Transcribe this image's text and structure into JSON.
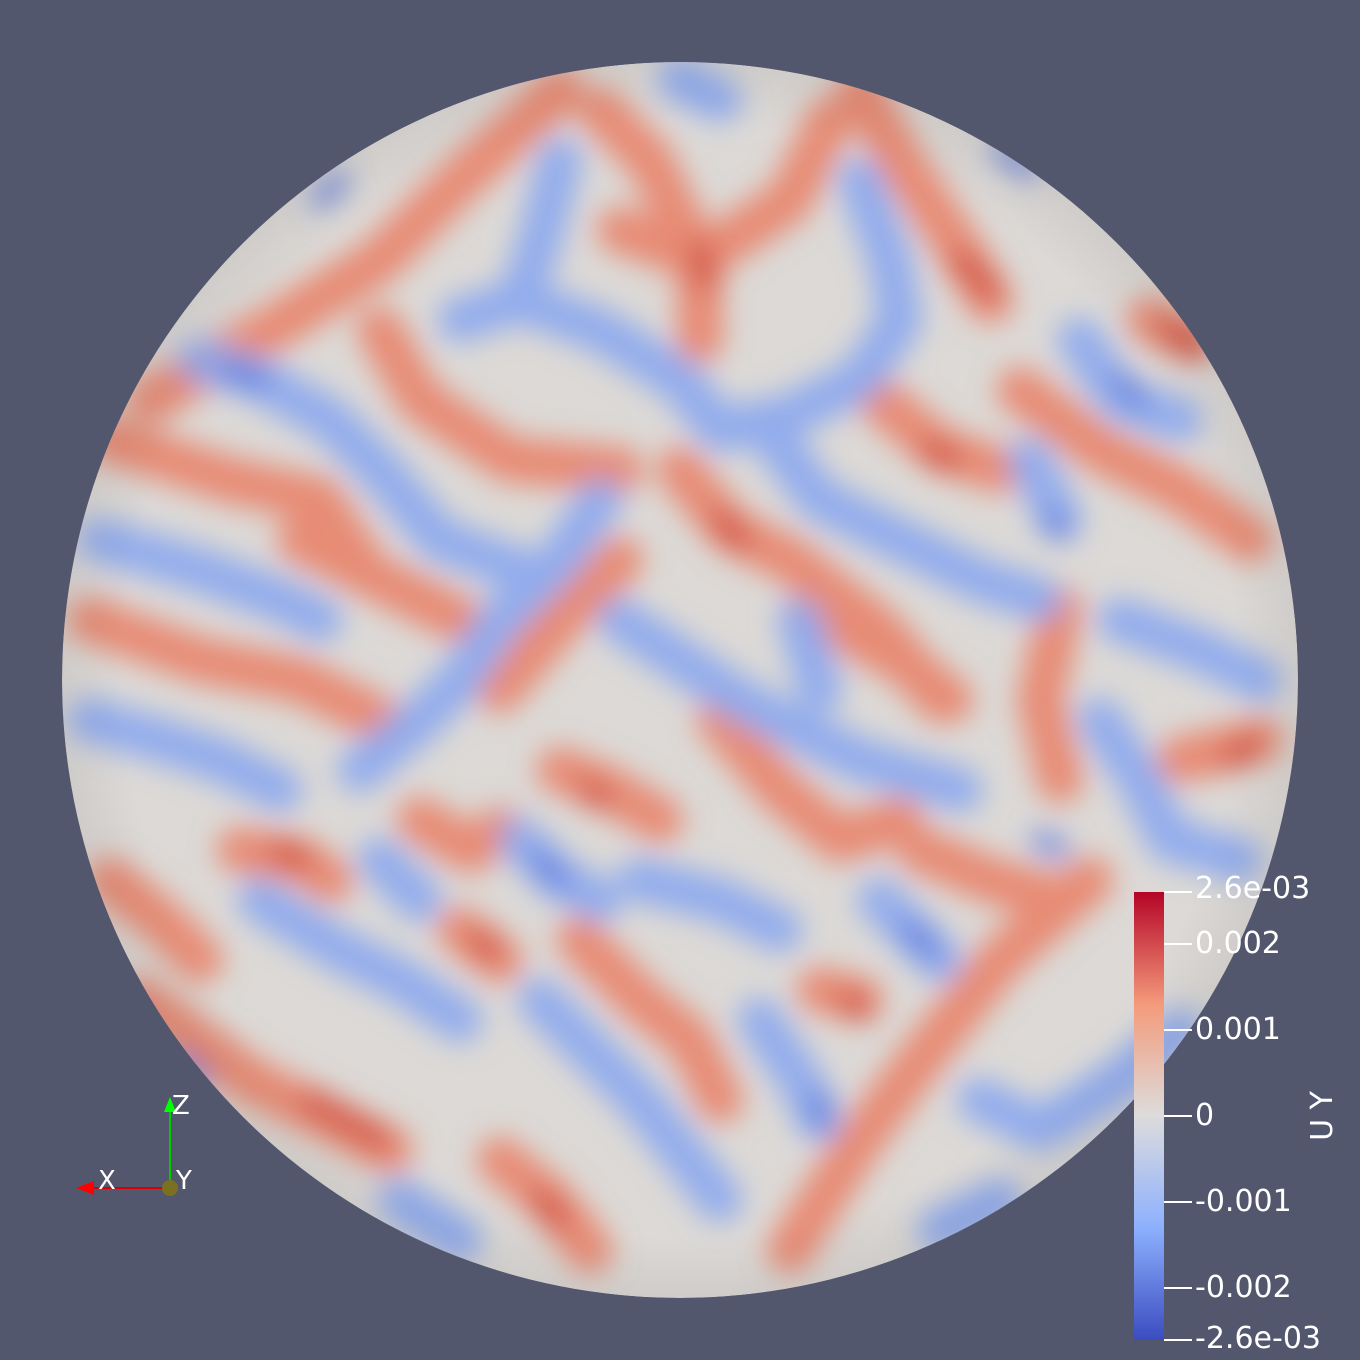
{
  "colormap": {
    "array": "U Y",
    "min_label": "-2.6e-03",
    "max_label": "2.6e-03",
    "range": [
      -0.0026,
      0.0026
    ],
    "colors": {
      "high": "#b40426",
      "mid_high": "#f49a7b",
      "mid": "#dddcdc",
      "mid_low": "#8db0fe",
      "low": "#3b4cc0"
    },
    "ticks": [
      {
        "value": 0.0026,
        "label": "2.6e-03"
      },
      {
        "value": 0.002,
        "label": "0.002"
      },
      {
        "value": 0.001,
        "label": "0.001"
      },
      {
        "value": 0,
        "label": "0"
      },
      {
        "value": -0.001,
        "label": "-0.001"
      },
      {
        "value": -0.002,
        "label": "-0.002"
      },
      {
        "value": -0.0026,
        "label": "-2.6e-03"
      }
    ]
  },
  "orientation_axes": {
    "x": {
      "label": "X",
      "color": "#ff0000"
    },
    "y": {
      "label": "Y",
      "color": "#ffff00"
    },
    "z": {
      "label": "Z",
      "color": "#00ff00"
    }
  },
  "background_color": "#52576e"
}
